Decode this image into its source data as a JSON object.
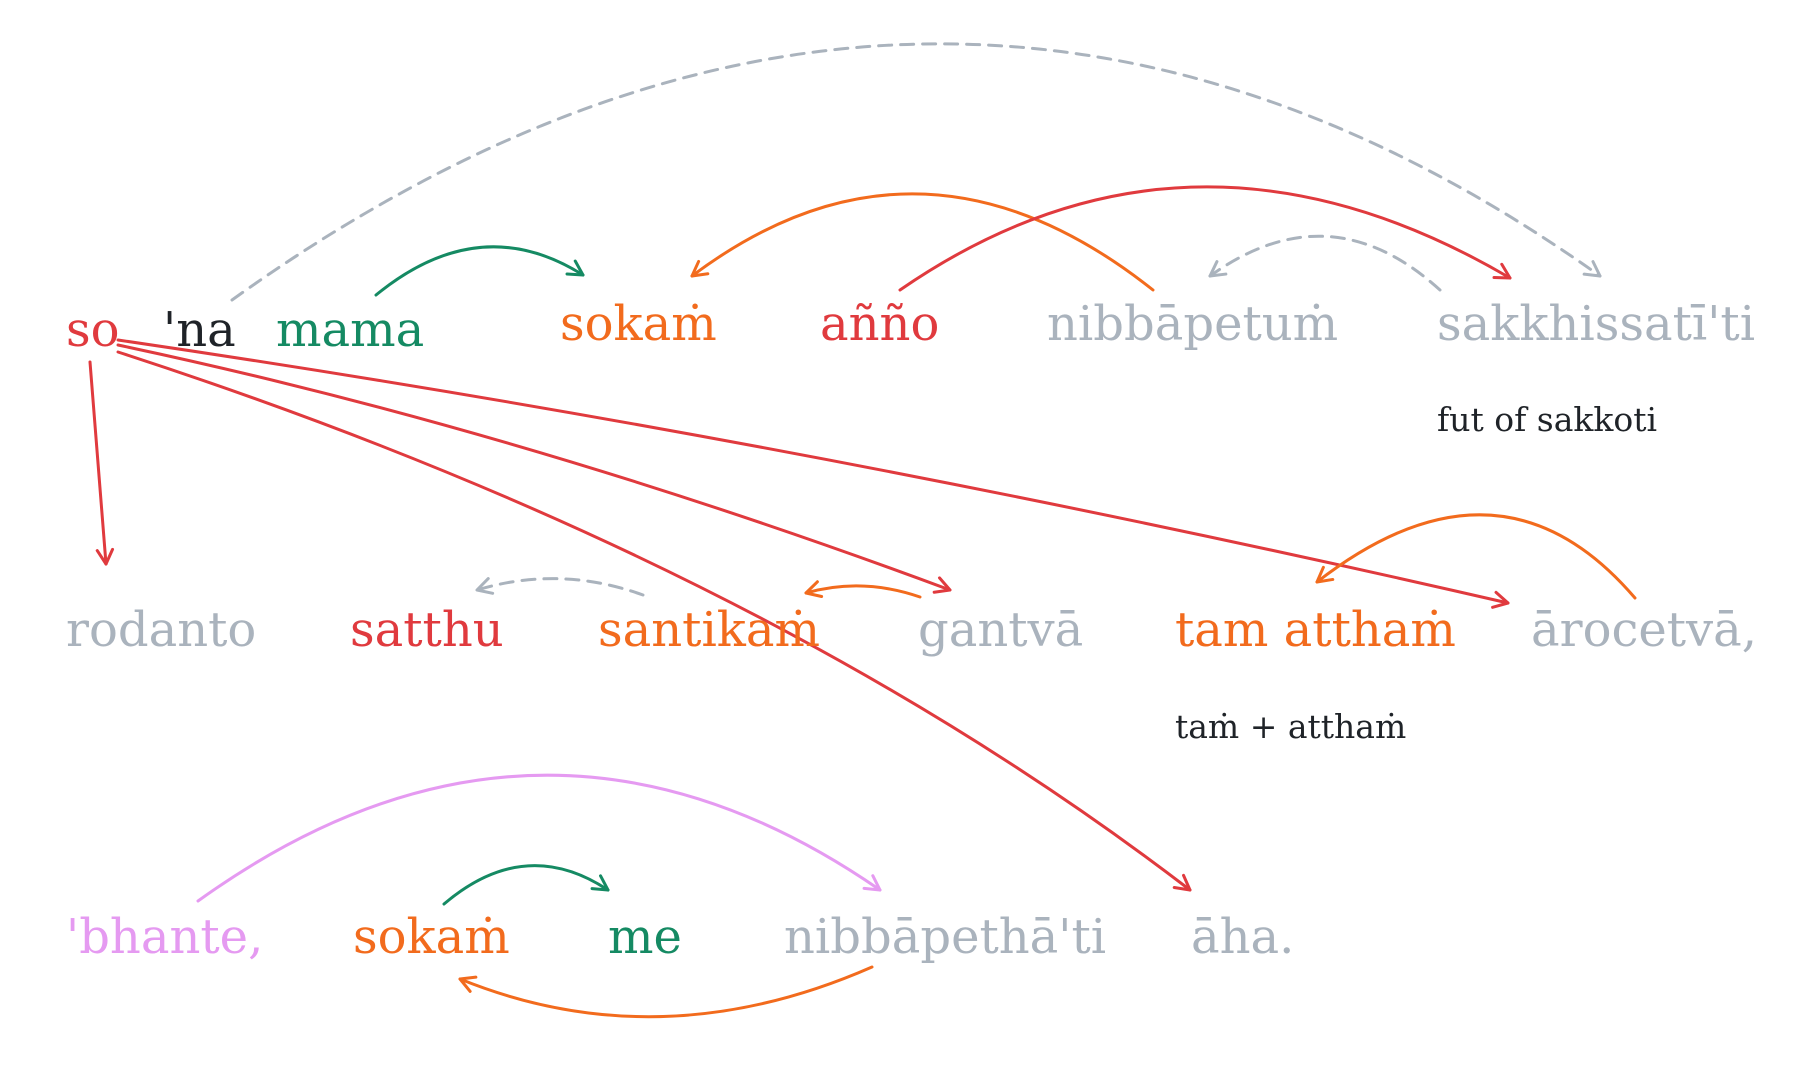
{
  "colors": {
    "red": "#e03a3e",
    "orange": "#f26b1d",
    "green": "#158a63",
    "gray": "#aab3bd",
    "pink": "#e59af1",
    "black": "#1f2328"
  },
  "words": [
    {
      "id": "so",
      "text": "so",
      "color": "red"
    },
    {
      "id": "na",
      "text": "'na",
      "color": "black"
    },
    {
      "id": "mama",
      "text": "mama",
      "color": "green"
    },
    {
      "id": "sokam1",
      "text": "sokaṁ",
      "color": "orange"
    },
    {
      "id": "anno",
      "text": "añño",
      "color": "red"
    },
    {
      "id": "nibbapetum",
      "text": "nibbāpetuṁ",
      "color": "gray"
    },
    {
      "id": "sakkhissati",
      "text": "sakkhissatī'ti",
      "color": "gray"
    },
    {
      "id": "rodanto",
      "text": "rodanto",
      "color": "gray"
    },
    {
      "id": "satthu",
      "text": "satthu",
      "color": "red"
    },
    {
      "id": "santikam",
      "text": "santikaṁ",
      "color": "orange"
    },
    {
      "id": "gantva",
      "text": "gantvā",
      "color": "gray"
    },
    {
      "id": "tam_attham",
      "text": "tam atthaṁ",
      "color": "orange"
    },
    {
      "id": "arocetva",
      "text": "ārocetvā,",
      "color": "gray"
    },
    {
      "id": "bhante",
      "text": "'bhante,",
      "color": "pink"
    },
    {
      "id": "sokam2",
      "text": "sokaṁ",
      "color": "orange"
    },
    {
      "id": "me",
      "text": "me",
      "color": "green"
    },
    {
      "id": "nibbapetha",
      "text": "nibbāpethā'ti",
      "color": "gray"
    },
    {
      "id": "aha",
      "text": "āha.",
      "color": "gray"
    }
  ],
  "notes": [
    {
      "id": "note_sakkoti",
      "text": "fut of sakkoti"
    },
    {
      "id": "note_tam",
      "text": "taṁ + atthaṁ"
    }
  ],
  "links": [
    {
      "from": "na",
      "to": "sakkhissati",
      "color": "gray",
      "style": "dashed"
    },
    {
      "from": "mama",
      "to": "sokam1",
      "color": "green",
      "style": "solid"
    },
    {
      "from": "nibbapetum",
      "to": "sokam1",
      "color": "orange",
      "style": "solid"
    },
    {
      "from": "anno",
      "to": "sakkhissati",
      "color": "red",
      "style": "solid"
    },
    {
      "from": "sakkhissati",
      "to": "nibbapetum",
      "color": "gray",
      "style": "dashed"
    },
    {
      "from": "so",
      "to": "rodanto",
      "color": "red",
      "style": "solid"
    },
    {
      "from": "so",
      "to": "gantva",
      "color": "red",
      "style": "solid"
    },
    {
      "from": "so",
      "to": "arocetva",
      "color": "red",
      "style": "solid"
    },
    {
      "from": "so",
      "to": "aha",
      "color": "red",
      "style": "solid"
    },
    {
      "from": "santikam",
      "to": "satthu",
      "color": "gray",
      "style": "dashed"
    },
    {
      "from": "gantva",
      "to": "santikam",
      "color": "orange",
      "style": "solid"
    },
    {
      "from": "arocetva",
      "to": "tam_attham",
      "color": "orange",
      "style": "solid"
    },
    {
      "from": "bhante",
      "to": "nibbapetha",
      "color": "pink",
      "style": "solid"
    },
    {
      "from": "sokam2",
      "to": "me",
      "color": "green",
      "style": "solid"
    },
    {
      "from": "nibbapetha",
      "to": "sokam2",
      "color": "orange",
      "style": "solid"
    }
  ]
}
